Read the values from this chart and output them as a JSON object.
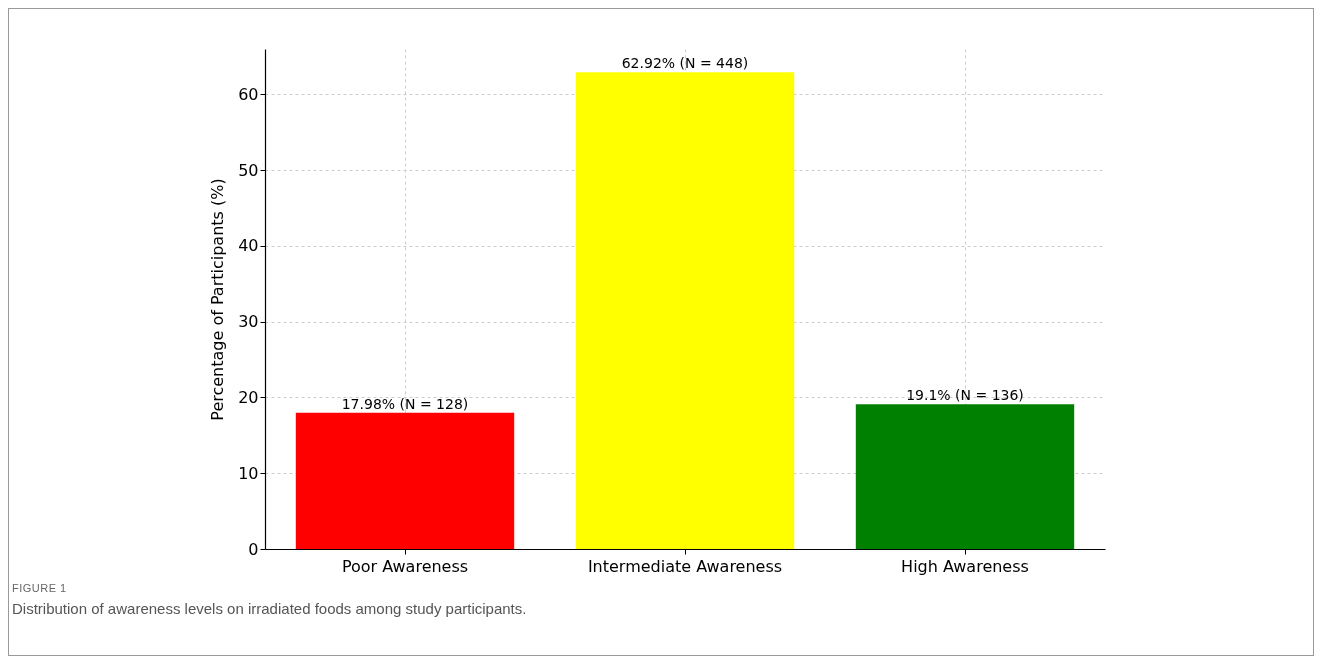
{
  "chart_data": {
    "type": "bar",
    "ylabel": "Percentage of Participants (%)",
    "categories": [
      "Poor Awareness",
      "Intermediate Awareness",
      "High Awareness"
    ],
    "values": [
      17.98,
      62.92,
      19.1
    ],
    "colors": [
      "#ff0000",
      "#ffff00",
      "#008000"
    ],
    "value_labels": [
      "17.98% (N = 128)",
      "62.92% (N = 448)",
      "19.1% (N = 136)"
    ],
    "ylim": [
      0,
      66
    ],
    "yticks": [
      0,
      10,
      20,
      30,
      40,
      50,
      60
    ],
    "grid": true,
    "annotations": [
      "FIGURE 1",
      "Distribution of awareness levels on irradiated foods among study participants."
    ]
  }
}
